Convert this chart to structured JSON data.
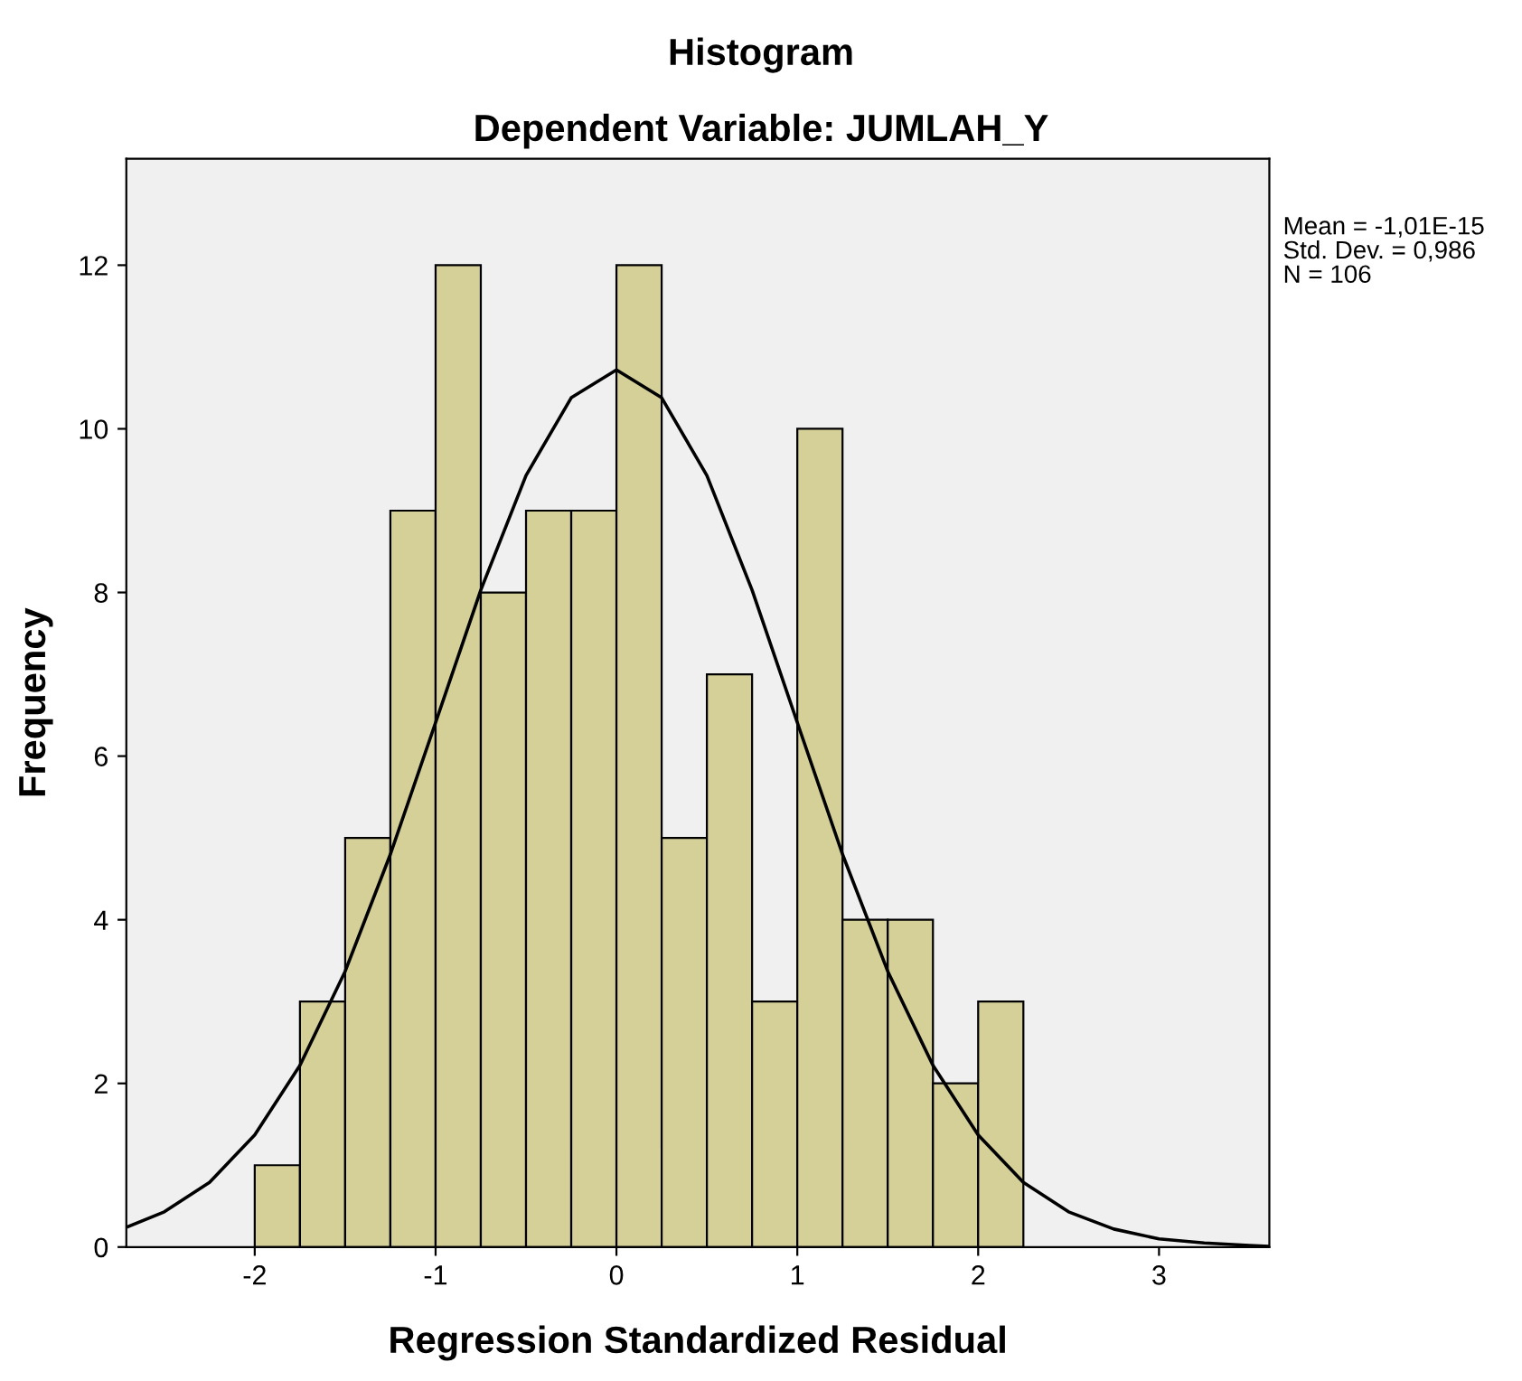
{
  "chart_data": {
    "type": "histogram",
    "title": "Histogram",
    "subtitle": "Dependent Variable: JUMLAH_Y",
    "xlabel": "Regression Standardized Residual",
    "ylabel": "Frequency",
    "xlim": [
      -2.71,
      3.61
    ],
    "ylim": [
      0,
      13.3
    ],
    "xticks": [
      -2,
      -1,
      0,
      1,
      2,
      3
    ],
    "yticks": [
      0,
      2,
      4,
      6,
      8,
      10,
      12
    ],
    "grid": false,
    "annotations": [
      "Mean = -1,01E-15",
      "Std. Dev. = 0,986",
      "N = 106"
    ],
    "series": [
      {
        "type": "histogram",
        "color": "#d5cf98",
        "bins": [
          -2,
          -1.75,
          -1.5,
          -1.25,
          -1,
          -0.75,
          -0.5,
          -0.25,
          0,
          0.25,
          0.5,
          0.75,
          1,
          1.25,
          1.5,
          1.75,
          2,
          2.25
        ],
        "values": [
          1,
          3,
          5,
          9,
          12,
          8,
          9,
          9,
          12,
          5,
          7,
          3,
          10,
          4,
          4,
          2,
          3
        ]
      },
      {
        "type": "line",
        "color": "#000000",
        "x": [
          -2.7,
          -2.5,
          -2.25,
          -2,
          -1.75,
          -1.5,
          -1.25,
          -1,
          -0.75,
          -0.5,
          -0.25,
          0,
          0.25,
          0.5,
          0.75,
          1,
          1.25,
          1.5,
          1.75,
          2,
          2.25,
          2.5,
          2.75,
          3,
          3.25,
          3.5,
          3.6
        ],
        "values": [
          0.25,
          0.43,
          0.79,
          1.37,
          2.22,
          3.37,
          4.8,
          6.41,
          8.03,
          9.43,
          10.38,
          10.72,
          10.38,
          9.43,
          8.03,
          6.41,
          4.8,
          3.37,
          2.22,
          1.37,
          0.79,
          0.43,
          0.22,
          0.1,
          0.05,
          0.02,
          0.01
        ]
      }
    ]
  }
}
